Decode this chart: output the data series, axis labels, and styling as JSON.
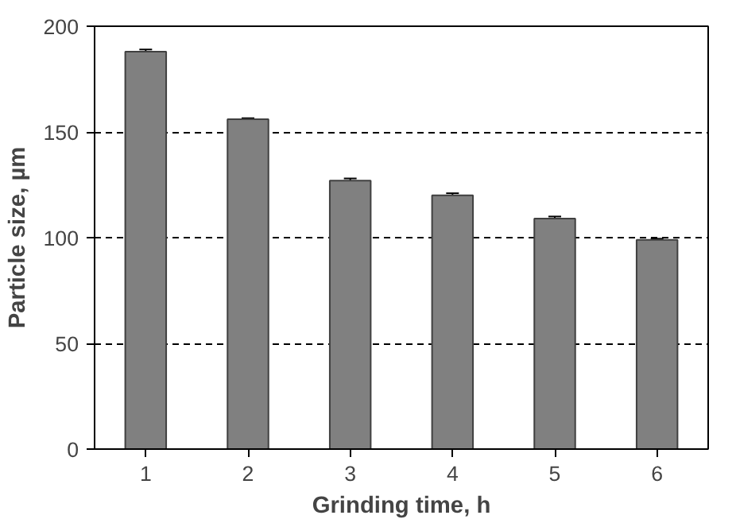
{
  "chart_data": {
    "type": "bar",
    "xlabel": "Grinding time, h",
    "ylabel": "Particle size, µm",
    "categories": [
      "1",
      "2",
      "3",
      "4",
      "5",
      "6"
    ],
    "values": [
      188,
      156,
      127,
      120,
      109,
      99
    ],
    "errors": [
      1,
      0.5,
      1,
      1,
      1,
      0.5
    ],
    "color": "#808080",
    "ylim": [
      0,
      200
    ],
    "yticks": [
      0,
      50,
      100,
      150,
      200
    ],
    "grid": "y"
  }
}
